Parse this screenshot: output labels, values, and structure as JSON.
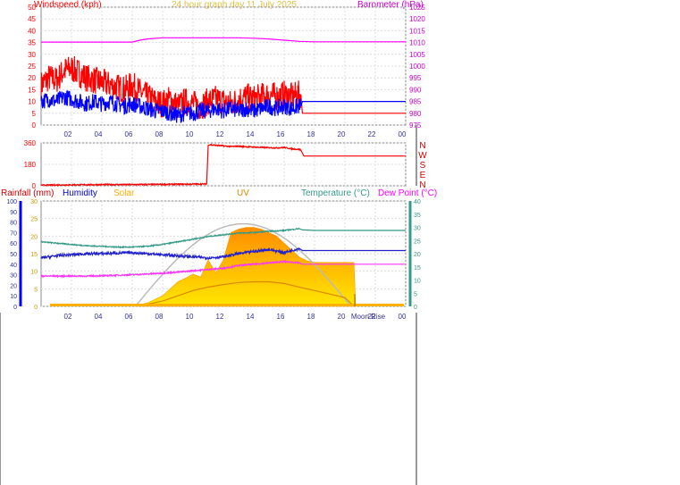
{
  "header": {
    "title": "24 hour graph day 11 July 2025"
  },
  "colors": {
    "wind_speed": "#ff0000",
    "wind_avg": "#0000ff",
    "barometer": "#ff00ff",
    "direction": "#ff0000",
    "humidity": "#2222cc",
    "temperature": "#339988",
    "dew_point": "#ff33ff",
    "solar": "#ffb000",
    "uv": "#dd8800",
    "rain_axis": "#0000ff",
    "temp_axis": "#339988",
    "grid": "#dddddd",
    "axis_text": "#333399"
  },
  "chart_data": [
    {
      "type": "line",
      "id": "wind",
      "xlabel": "",
      "x_ticks": [
        "02",
        "04",
        "06",
        "08",
        "10",
        "12",
        "14",
        "16",
        "18",
        "20",
        "22",
        "00"
      ],
      "left_axis": {
        "label": "Windspeed (kph)",
        "ylim": [
          0,
          50
        ],
        "ticks": [
          0,
          5,
          10,
          15,
          20,
          25,
          30,
          35,
          40,
          45,
          50
        ]
      },
      "right_axis": {
        "label": "Barometer (hPa)",
        "ylim": [
          975,
          1025
        ],
        "ticks": [
          975,
          980,
          985,
          990,
          995,
          1000,
          1005,
          1010,
          1015,
          1020,
          1025
        ]
      },
      "series": [
        {
          "name": "",
          "axis": "left",
          "color_key": "wind_speed",
          "hours": [
            0,
            0.5,
            1,
            1.5,
            2,
            2.5,
            3,
            3.5,
            4,
            4.5,
            5,
            5.5,
            6,
            6.5,
            7,
            7.5,
            8,
            8.5,
            9,
            9.5,
            10,
            10.5,
            11,
            11.5,
            12,
            12.5,
            13,
            13.5,
            14,
            14.5,
            15,
            15.5,
            16,
            16.5,
            17,
            17.1,
            17.2,
            24
          ],
          "values": [
            17,
            20,
            19,
            23,
            24,
            22,
            20,
            19,
            18,
            17,
            16,
            15,
            17,
            14,
            12,
            10,
            9,
            11,
            8,
            10,
            9,
            8,
            10,
            11,
            10,
            9,
            11,
            12,
            11,
            12,
            13,
            12,
            13,
            12,
            13,
            13,
            5,
            5
          ]
        },
        {
          "name": "",
          "axis": "left",
          "color_key": "wind_avg",
          "hours": [
            0,
            0.5,
            1,
            1.5,
            2,
            2.5,
            3,
            3.5,
            4,
            4.5,
            5,
            5.5,
            6,
            6.5,
            7,
            7.5,
            8,
            8.5,
            9,
            9.5,
            10,
            10.5,
            11,
            11.5,
            12,
            12.5,
            13,
            13.5,
            14,
            14.5,
            15,
            15.5,
            16,
            16.5,
            17,
            17.1,
            17.2,
            24
          ],
          "values": [
            10,
            11,
            10,
            12,
            11,
            10,
            9,
            10,
            9,
            10,
            9,
            8,
            9,
            8,
            7,
            6,
            6,
            5,
            4,
            5,
            5,
            6,
            6,
            7,
            6,
            7,
            6,
            7,
            6,
            7,
            8,
            7,
            8,
            7,
            8,
            8,
            10,
            10
          ]
        },
        {
          "name": "",
          "axis": "right",
          "color_key": "barometer",
          "hours": [
            0,
            1,
            2,
            3,
            4,
            5,
            6,
            6.5,
            7,
            8,
            9,
            10,
            11,
            12,
            13,
            14,
            15,
            16,
            17,
            18,
            19,
            20,
            21,
            22,
            23,
            24
          ],
          "values": [
            1010.2,
            1010.2,
            1010.2,
            1010.2,
            1010.2,
            1010.2,
            1010.2,
            1011,
            1011.5,
            1012,
            1012,
            1012,
            1012,
            1012,
            1012,
            1011.8,
            1011.5,
            1011,
            1010.5,
            1010.3,
            1010.3,
            1010.3,
            1010.3,
            1010.3,
            1010.3,
            1010.3
          ]
        }
      ]
    },
    {
      "type": "line",
      "id": "direction",
      "y_ticks": [
        "360",
        "180",
        "0"
      ],
      "ylim": [
        0,
        360
      ],
      "right_labels": [
        "N",
        "W",
        "S",
        "E",
        "N"
      ],
      "series": [
        {
          "name": "",
          "color_key": "direction",
          "hours": [
            0,
            2,
            4,
            6,
            8,
            10,
            10.9,
            11,
            11.5,
            12,
            12.5,
            13,
            13.5,
            14,
            14.5,
            15,
            15.5,
            16,
            16.5,
            17,
            17.1,
            17.3,
            24
          ],
          "values": [
            5,
            8,
            10,
            10,
            12,
            14,
            15,
            345,
            340,
            335,
            330,
            332,
            328,
            325,
            322,
            320,
            318,
            322,
            310,
            305,
            300,
            250,
            250
          ]
        }
      ]
    },
    {
      "type": "line",
      "id": "multi",
      "x_ticks": [
        "02",
        "04",
        "06",
        "08",
        "10",
        "12",
        "14",
        "16",
        "18",
        "20",
        "22",
        "00"
      ],
      "left_axis_1": {
        "label": "Rainfall (mm)",
        "ylim": [
          0,
          100
        ],
        "ticks": [
          0,
          10,
          20,
          30,
          40,
          50,
          60,
          70,
          80,
          90,
          100
        ]
      },
      "left_axis_2": {
        "label": "Humidity",
        "ylim": [
          0,
          30
        ],
        "ticks": [
          0,
          5,
          10,
          15,
          20,
          25,
          30
        ]
      },
      "right_axis": {
        "label": "Temperature (°C)",
        "ylim": [
          0,
          40
        ],
        "ticks": [
          0,
          5,
          10,
          15,
          20,
          25,
          30,
          35,
          40
        ]
      },
      "series_labels": {
        "solar": "Solar",
        "uv": "UV",
        "dew_point": "Dew Point (°C)"
      },
      "moon_label": "Moon Rise",
      "series": [
        {
          "name": "Temperature (°C)",
          "color_key": "temperature",
          "hours": [
            0,
            1,
            2,
            3,
            4,
            5,
            6,
            7,
            8,
            9,
            10,
            11,
            12,
            13,
            14,
            15,
            16,
            17,
            17.2,
            18,
            19,
            20,
            21,
            22,
            23,
            24
          ],
          "values": [
            24.5,
            24,
            23.5,
            23,
            22.8,
            22.5,
            22.5,
            22.8,
            23.5,
            24.5,
            25.5,
            26.5,
            27.2,
            27.8,
            28,
            28.5,
            28.8,
            29.5,
            29,
            28.8,
            28.8,
            28.8,
            28.8,
            28.8,
            28.8,
            28.8
          ]
        },
        {
          "name": "Humidity",
          "color_key": "humidity",
          "hours": [
            0,
            1,
            2,
            3,
            4,
            5,
            6,
            7,
            8,
            9,
            10,
            11,
            12,
            13,
            14,
            15,
            16,
            17,
            17.2,
            18,
            19,
            20,
            21,
            22,
            23,
            24
          ],
          "values": [
            46,
            48,
            49,
            50,
            50,
            50.5,
            51,
            50,
            49,
            48,
            47,
            46,
            47,
            50,
            52,
            54,
            51,
            55,
            53,
            53,
            53,
            53,
            53,
            53,
            53,
            53
          ]
        },
        {
          "name": "Dew Point (°C)",
          "color_key": "dew_point",
          "hours": [
            0,
            1,
            2,
            3,
            4,
            5,
            6,
            7,
            8,
            9,
            10,
            11,
            12,
            13,
            14,
            15,
            16,
            17,
            17.2,
            18,
            19,
            20,
            21,
            22,
            23,
            24
          ],
          "values": [
            11.5,
            11.5,
            11.5,
            11.5,
            11.6,
            11.8,
            12,
            12.3,
            12.6,
            13,
            13.5,
            14,
            14.5,
            15.5,
            16,
            16.5,
            17,
            16.5,
            16,
            16,
            16,
            16,
            16,
            16,
            16,
            16
          ]
        },
        {
          "name": "Solar",
          "color_key": "solar",
          "hours": [
            6.2,
            6.5,
            7,
            7.5,
            8,
            8.5,
            9,
            9.5,
            10,
            10.5,
            11,
            11.5,
            12,
            12.5,
            13,
            13.5,
            14,
            14.5,
            15,
            15.5,
            16,
            16.5,
            17,
            17.5,
            18,
            19,
            20,
            20.6,
            20.7
          ],
          "values": [
            0,
            0.5,
            1,
            2,
            3,
            5,
            7,
            9,
            11,
            13,
            15,
            17,
            19,
            21,
            22,
            22.5,
            22.5,
            22,
            21,
            20,
            18,
            16,
            14,
            13,
            12.5,
            12.5,
            12.5,
            12.5,
            0
          ]
        },
        {
          "name": "UV",
          "color_key": "uv",
          "hours": [
            6.5,
            7,
            8,
            9,
            10,
            11,
            12,
            13,
            14,
            15,
            16,
            17,
            18,
            19,
            20,
            20.6
          ],
          "values": [
            0.3,
            0.6,
            1.5,
            3,
            4.5,
            5.5,
            6.2,
            6.8,
            7,
            7,
            6.5,
            5.5,
            4.5,
            3.5,
            2.5,
            0
          ]
        }
      ]
    }
  ]
}
